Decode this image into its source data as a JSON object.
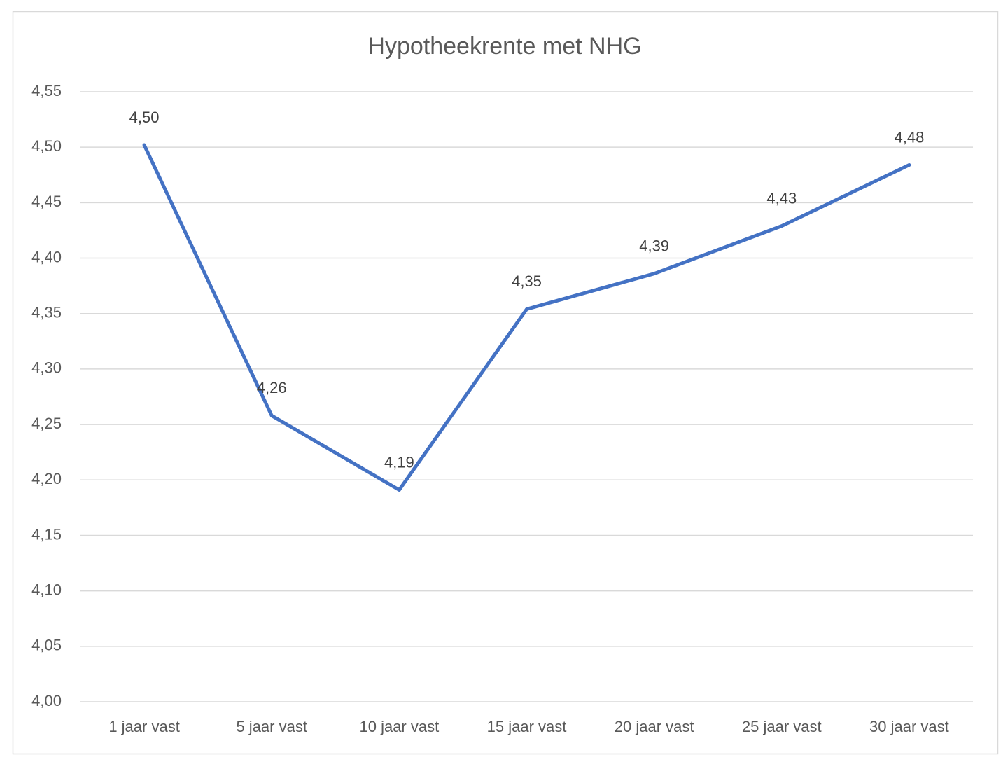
{
  "chart_data": {
    "type": "line",
    "title": "Hypotheekrente met NHG",
    "categories": [
      "1 jaar vast",
      "5 jaar vast",
      "10 jaar vast",
      "15 jaar vast",
      "20 jaar vast",
      "25 jaar vast",
      "30 jaar vast"
    ],
    "series": [
      {
        "color": "#4472c4",
        "values": [
          4.502,
          4.258,
          4.191,
          4.354,
          4.386,
          4.429,
          4.484
        ],
        "value_labels": [
          "4,50",
          "4,26",
          "4,19",
          "4,35",
          "4,39",
          "4,43",
          "4,48"
        ]
      }
    ],
    "ylim": [
      4.0,
      4.55
    ],
    "yticks": [
      {
        "value": 4.0,
        "label": "4,00"
      },
      {
        "value": 4.05,
        "label": "4,05"
      },
      {
        "value": 4.1,
        "label": "4,10"
      },
      {
        "value": 4.15,
        "label": "4,15"
      },
      {
        "value": 4.2,
        "label": "4,20"
      },
      {
        "value": 4.25,
        "label": "4,25"
      },
      {
        "value": 4.3,
        "label": "4,30"
      },
      {
        "value": 4.35,
        "label": "4,35"
      },
      {
        "value": 4.4,
        "label": "4,40"
      },
      {
        "value": 4.45,
        "label": "4,45"
      },
      {
        "value": 4.5,
        "label": "4,50"
      },
      {
        "value": 4.55,
        "label": "4,55"
      }
    ],
    "grid": true
  }
}
